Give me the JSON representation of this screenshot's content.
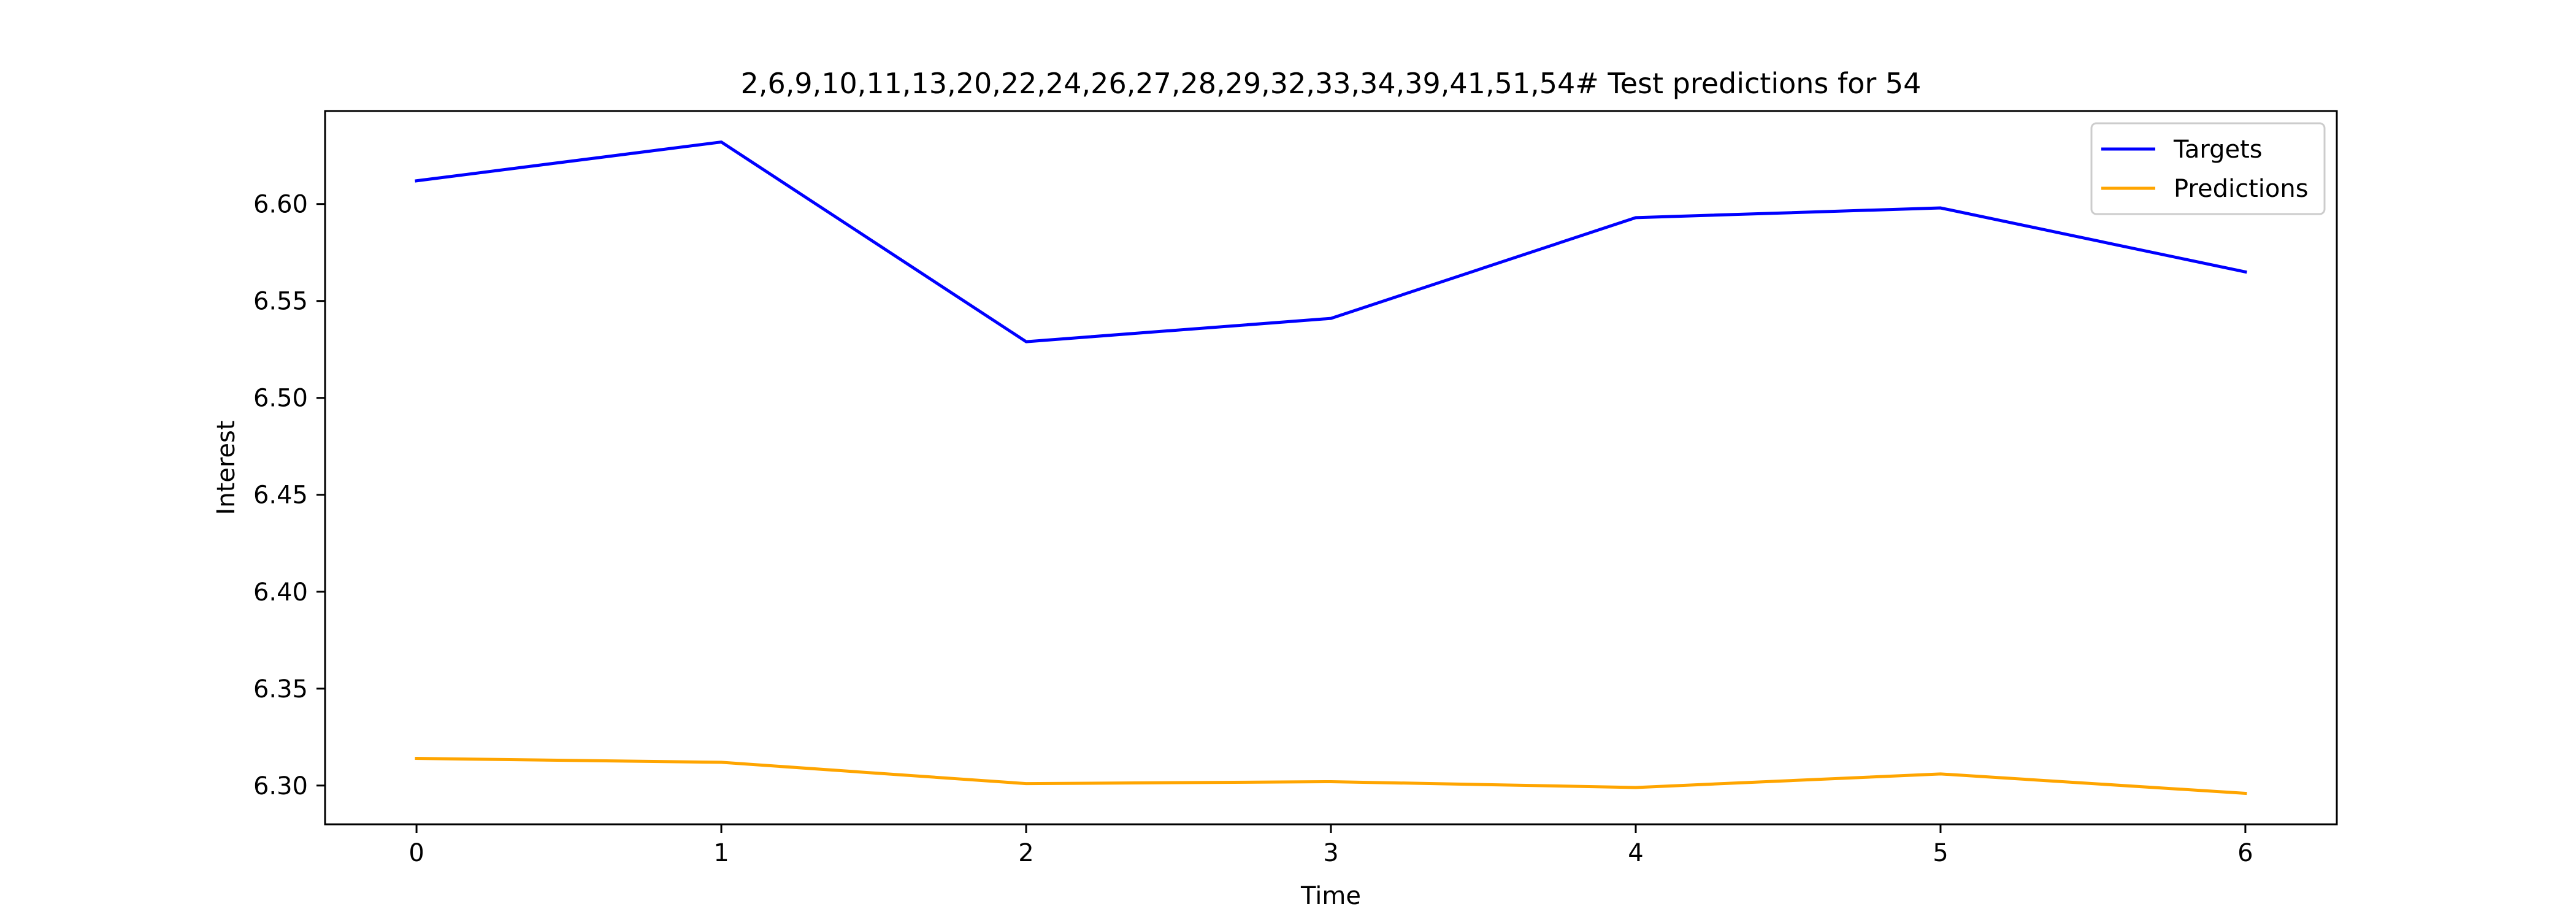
{
  "chart_data": {
    "type": "line",
    "title": "2,6,9,10,11,13,20,22,24,26,27,28,29,32,33,34,39,41,51,54# Test predictions for 54",
    "xlabel": "Time",
    "ylabel": "Interest",
    "x": [
      0,
      1,
      2,
      3,
      4,
      5,
      6
    ],
    "xlim": [
      -0.3,
      6.3
    ],
    "ylim": [
      6.28,
      6.648
    ],
    "xticks": [
      "0",
      "1",
      "2",
      "3",
      "4",
      "5",
      "6"
    ],
    "yticks": [
      "6.30",
      "6.35",
      "6.40",
      "6.45",
      "6.50",
      "6.55",
      "6.60"
    ],
    "grid": false,
    "legend_position": "upper right",
    "series": [
      {
        "name": "Targets",
        "color": "#0000ff",
        "values": [
          6.612,
          6.632,
          6.529,
          6.541,
          6.593,
          6.598,
          6.565
        ]
      },
      {
        "name": "Predictions",
        "color": "#ffa500",
        "values": [
          6.314,
          6.312,
          6.301,
          6.302,
          6.299,
          6.306,
          6.296
        ]
      }
    ]
  }
}
